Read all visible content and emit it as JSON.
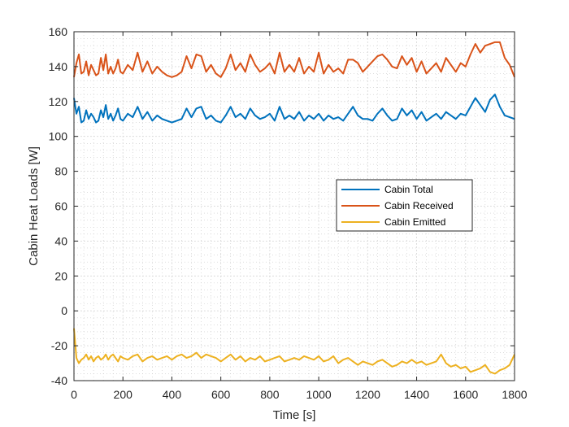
{
  "chart_data": {
    "type": "line",
    "title": "",
    "xlabel": "Time [s]",
    "ylabel": "Cabin Heat Loads [W]",
    "xlim": [
      0,
      1800
    ],
    "ylim": [
      -40,
      160
    ],
    "x_ticks": [
      0,
      200,
      400,
      600,
      800,
      1000,
      1200,
      1400,
      1600,
      1800
    ],
    "y_ticks": [
      -40,
      -20,
      0,
      20,
      40,
      60,
      80,
      100,
      120,
      140,
      160
    ],
    "grid": true,
    "minor_grid": true,
    "legend_position": "center-right",
    "series": [
      {
        "name": "Cabin Total",
        "color": "#0072BD",
        "x": [
          0,
          10,
          20,
          30,
          40,
          50,
          60,
          70,
          80,
          90,
          100,
          110,
          120,
          130,
          140,
          150,
          160,
          170,
          180,
          190,
          200,
          220,
          240,
          260,
          280,
          300,
          320,
          340,
          360,
          380,
          400,
          420,
          440,
          460,
          480,
          500,
          520,
          540,
          560,
          580,
          600,
          620,
          640,
          660,
          680,
          700,
          720,
          740,
          760,
          780,
          800,
          820,
          840,
          860,
          880,
          900,
          920,
          940,
          960,
          980,
          1000,
          1020,
          1040,
          1060,
          1080,
          1100,
          1120,
          1140,
          1160,
          1180,
          1200,
          1220,
          1240,
          1260,
          1280,
          1300,
          1320,
          1340,
          1360,
          1380,
          1400,
          1420,
          1440,
          1460,
          1480,
          1500,
          1520,
          1540,
          1560,
          1580,
          1600,
          1620,
          1640,
          1660,
          1680,
          1700,
          1720,
          1740,
          1760,
          1780,
          1800
        ],
        "y": [
          122,
          113,
          117,
          108,
          109,
          115,
          110,
          113,
          111,
          108,
          109,
          115,
          111,
          118,
          110,
          113,
          109,
          112,
          116,
          110,
          109,
          113,
          111,
          117,
          110,
          114,
          109,
          112,
          110,
          109,
          108,
          109,
          110,
          116,
          111,
          116,
          117,
          110,
          112,
          109,
          108,
          112,
          117,
          111,
          113,
          110,
          116,
          112,
          110,
          111,
          113,
          109,
          117,
          110,
          112,
          110,
          114,
          109,
          112,
          110,
          113,
          109,
          112,
          110,
          111,
          109,
          113,
          117,
          112,
          110,
          110,
          109,
          113,
          116,
          112,
          109,
          110,
          116,
          112,
          115,
          110,
          114,
          109,
          111,
          113,
          110,
          114,
          112,
          110,
          113,
          112,
          117,
          122,
          118,
          114,
          121,
          124,
          117,
          112,
          111,
          110
        ]
      },
      {
        "name": "Cabin Received",
        "color": "#D95319",
        "x": [
          0,
          10,
          20,
          30,
          40,
          50,
          60,
          70,
          80,
          90,
          100,
          110,
          120,
          130,
          140,
          150,
          160,
          170,
          180,
          190,
          200,
          220,
          240,
          260,
          280,
          300,
          320,
          340,
          360,
          380,
          400,
          420,
          440,
          460,
          480,
          500,
          520,
          540,
          560,
          580,
          600,
          620,
          640,
          660,
          680,
          700,
          720,
          740,
          760,
          780,
          800,
          820,
          840,
          860,
          880,
          900,
          920,
          940,
          960,
          980,
          1000,
          1020,
          1040,
          1060,
          1080,
          1100,
          1120,
          1140,
          1160,
          1180,
          1200,
          1220,
          1240,
          1260,
          1280,
          1300,
          1320,
          1340,
          1360,
          1380,
          1400,
          1420,
          1440,
          1460,
          1480,
          1500,
          1520,
          1540,
          1560,
          1580,
          1600,
          1620,
          1640,
          1660,
          1680,
          1700,
          1720,
          1740,
          1760,
          1780,
          1800
        ],
        "y": [
          134,
          142,
          147,
          136,
          137,
          143,
          135,
          141,
          138,
          135,
          136,
          145,
          138,
          147,
          136,
          140,
          136,
          139,
          144,
          137,
          136,
          141,
          138,
          148,
          137,
          143,
          136,
          140,
          137,
          135,
          134,
          135,
          137,
          146,
          139,
          147,
          146,
          137,
          141,
          136,
          134,
          139,
          147,
          138,
          142,
          137,
          147,
          141,
          137,
          139,
          142,
          136,
          148,
          137,
          141,
          137,
          145,
          136,
          140,
          137,
          148,
          136,
          141,
          137,
          139,
          136,
          144,
          144,
          142,
          137,
          140,
          143,
          146,
          147,
          144,
          140,
          139,
          146,
          141,
          145,
          137,
          143,
          136,
          139,
          142,
          137,
          145,
          141,
          137,
          142,
          140,
          147,
          153,
          148,
          152,
          153,
          154,
          154,
          145,
          141,
          134
        ]
      },
      {
        "name": "Cabin Emitted",
        "color": "#EDB120",
        "x": [
          0,
          10,
          20,
          30,
          40,
          50,
          60,
          70,
          80,
          90,
          100,
          110,
          120,
          130,
          140,
          150,
          160,
          170,
          180,
          190,
          200,
          220,
          240,
          260,
          280,
          300,
          320,
          340,
          360,
          380,
          400,
          420,
          440,
          460,
          480,
          500,
          520,
          540,
          560,
          580,
          600,
          620,
          640,
          660,
          680,
          700,
          720,
          740,
          760,
          780,
          800,
          820,
          840,
          860,
          880,
          900,
          920,
          940,
          960,
          980,
          1000,
          1020,
          1040,
          1060,
          1080,
          1100,
          1120,
          1140,
          1160,
          1180,
          1200,
          1220,
          1240,
          1260,
          1280,
          1300,
          1320,
          1340,
          1360,
          1380,
          1400,
          1420,
          1440,
          1460,
          1480,
          1500,
          1520,
          1540,
          1560,
          1580,
          1600,
          1620,
          1640,
          1660,
          1680,
          1700,
          1720,
          1740,
          1760,
          1780,
          1800
        ],
        "y": [
          -10,
          -27,
          -30,
          -28,
          -27,
          -25,
          -28,
          -26,
          -29,
          -27,
          -26,
          -28,
          -27,
          -25,
          -28,
          -26,
          -25,
          -27,
          -29,
          -26,
          -27,
          -28,
          -26,
          -25,
          -29,
          -27,
          -26,
          -28,
          -27,
          -26,
          -28,
          -26,
          -25,
          -27,
          -26,
          -24,
          -27,
          -25,
          -26,
          -27,
          -29,
          -27,
          -25,
          -28,
          -26,
          -29,
          -27,
          -28,
          -26,
          -29,
          -28,
          -27,
          -26,
          -29,
          -28,
          -27,
          -28,
          -26,
          -27,
          -28,
          -26,
          -29,
          -28,
          -26,
          -30,
          -28,
          -27,
          -29,
          -31,
          -29,
          -30,
          -31,
          -29,
          -28,
          -30,
          -32,
          -31,
          -29,
          -30,
          -28,
          -30,
          -29,
          -31,
          -30,
          -29,
          -25,
          -30,
          -32,
          -31,
          -33,
          -32,
          -35,
          -34,
          -33,
          -31,
          -35,
          -36,
          -34,
          -33,
          -31,
          -25
        ]
      }
    ]
  }
}
